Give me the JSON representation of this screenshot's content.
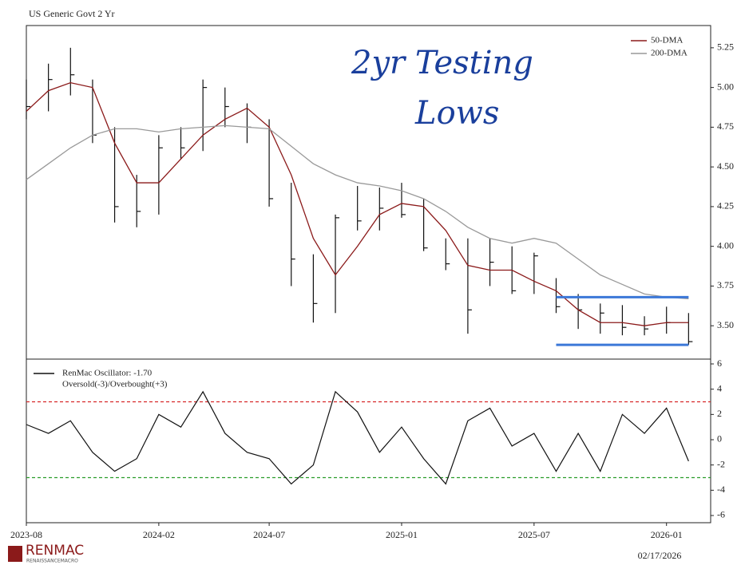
{
  "chart_data": [
    {
      "type": "ohlc",
      "title": "US Generic Govt 2 Yr",
      "annotation": [
        "2yr Testing",
        "Lows"
      ],
      "x": [
        "2023-08",
        "2023-09",
        "2023-10",
        "2023-11",
        "2023-12",
        "2024-01",
        "2024-02",
        "2024-03",
        "2024-04",
        "2024-05",
        "2024-06",
        "2024-07",
        "2024-08",
        "2024-09",
        "2024-10",
        "2024-11",
        "2024-12",
        "2025-01",
        "2025-02",
        "2025-03",
        "2025-04",
        "2025-05",
        "2025-06",
        "2025-07",
        "2025-08",
        "2025-09",
        "2025-10",
        "2025-11",
        "2025-12",
        "2026-01",
        "2026-02"
      ],
      "high": [
        5.05,
        5.15,
        5.25,
        5.05,
        4.75,
        4.45,
        4.7,
        4.75,
        5.05,
        5.0,
        4.9,
        4.8,
        4.4,
        3.95,
        4.2,
        4.38,
        4.37,
        4.4,
        4.3,
        4.05,
        4.05,
        4.05,
        4.0,
        3.96,
        3.8,
        3.7,
        3.64,
        3.63,
        3.56,
        3.62,
        3.58
      ],
      "low": [
        4.8,
        4.85,
        4.95,
        4.65,
        4.15,
        4.12,
        4.2,
        4.55,
        4.6,
        4.75,
        4.65,
        4.25,
        3.75,
        3.52,
        3.58,
        4.1,
        4.1,
        4.18,
        3.97,
        3.85,
        3.45,
        3.75,
        3.7,
        3.7,
        3.58,
        3.48,
        3.45,
        3.44,
        3.44,
        3.45,
        3.38
      ],
      "close": [
        4.88,
        5.05,
        5.08,
        4.7,
        4.25,
        4.22,
        4.62,
        4.62,
        5.0,
        4.88,
        4.75,
        4.3,
        3.92,
        3.64,
        4.18,
        4.16,
        4.24,
        4.2,
        3.99,
        3.89,
        3.6,
        3.9,
        3.72,
        3.94,
        3.62,
        3.6,
        3.58,
        3.49,
        3.48,
        3.52,
        3.4
      ],
      "color": "#111111",
      "series": [
        {
          "name": "50-DMA",
          "color": "#8b1a1a",
          "values": [
            4.85,
            4.98,
            5.03,
            5.0,
            4.65,
            4.4,
            4.4,
            4.55,
            4.7,
            4.8,
            4.87,
            4.75,
            4.45,
            4.05,
            3.82,
            4.0,
            4.2,
            4.27,
            4.25,
            4.1,
            3.88,
            3.85,
            3.85,
            3.78,
            3.72,
            3.6,
            3.52,
            3.52,
            3.5,
            3.52,
            3.52
          ]
        },
        {
          "name": "200-DMA",
          "color": "#999999",
          "values": [
            4.42,
            4.52,
            4.62,
            4.7,
            4.74,
            4.74,
            4.72,
            4.74,
            4.75,
            4.76,
            4.75,
            4.74,
            4.63,
            4.52,
            4.45,
            4.4,
            4.38,
            4.35,
            4.3,
            4.22,
            4.12,
            4.05,
            4.02,
            4.05,
            4.02,
            3.92,
            3.82,
            3.76,
            3.7,
            3.68,
            3.67
          ]
        }
      ],
      "support": {
        "color": "#3c78d8",
        "values": [
          3.68,
          3.38
        ],
        "x": [
          "2025-08",
          "2026-02"
        ]
      },
      "xlim": [
        "2023-08",
        "2026-03"
      ],
      "ylim": [
        3.29,
        5.39
      ],
      "yticks": [
        {
          "value": 3.5,
          "label": "3.50"
        },
        3.75,
        {
          "value": 4.0,
          "label": "4.00"
        },
        4.25,
        {
          "value": 4.5,
          "label": "4.50"
        },
        4.75,
        {
          "value": 5.0,
          "label": "5.00"
        },
        5.25
      ]
    },
    {
      "type": "line",
      "legend": [
        "RenMac Oscillator: -1.70",
        "Oversold(-3)/Overbought(+3)"
      ],
      "x": [
        "2023-08",
        "2023-09",
        "2023-10",
        "2023-11",
        "2023-12",
        "2024-01",
        "2024-02",
        "2024-03",
        "2024-04",
        "2024-05",
        "2024-06",
        "2024-07",
        "2024-08",
        "2024-09",
        "2024-10",
        "2024-11",
        "2024-12",
        "2025-01",
        "2025-02",
        "2025-03",
        "2025-04",
        "2025-05",
        "2025-06",
        "2025-07",
        "2025-08",
        "2025-09",
        "2025-10",
        "2025-11",
        "2025-12",
        "2026-01",
        "2026-02"
      ],
      "values": [
        1.2,
        0.5,
        1.5,
        -1.0,
        -2.5,
        -1.5,
        2.0,
        1.0,
        3.8,
        0.5,
        -1.0,
        -1.5,
        -3.5,
        -2.0,
        3.8,
        2.2,
        -1.0,
        1.0,
        -1.5,
        -3.5,
        1.5,
        2.5,
        -0.5,
        0.5,
        -2.5,
        0.5,
        -2.5,
        2.0,
        0.5,
        2.5,
        -1.7
      ],
      "color": "#111111",
      "overbought": 3,
      "overbought_color": "#d62728",
      "oversold": -3,
      "oversold_color": "#2a9d2a",
      "xlim": [
        "2023-08",
        "2026-03"
      ],
      "ylim": [
        -6.57,
        6.38
      ],
      "yticks": [
        -6,
        -4,
        -2,
        0,
        2,
        4,
        6
      ],
      "xticks": [
        "2023-08",
        "2024-02",
        "2024-07",
        "2025-01",
        "2025-07",
        "2026-01"
      ]
    }
  ],
  "footer": {
    "logo": "RENMAC",
    "logo_sub": "RENAISSANCEMACRO",
    "date": "02/17/2026"
  }
}
